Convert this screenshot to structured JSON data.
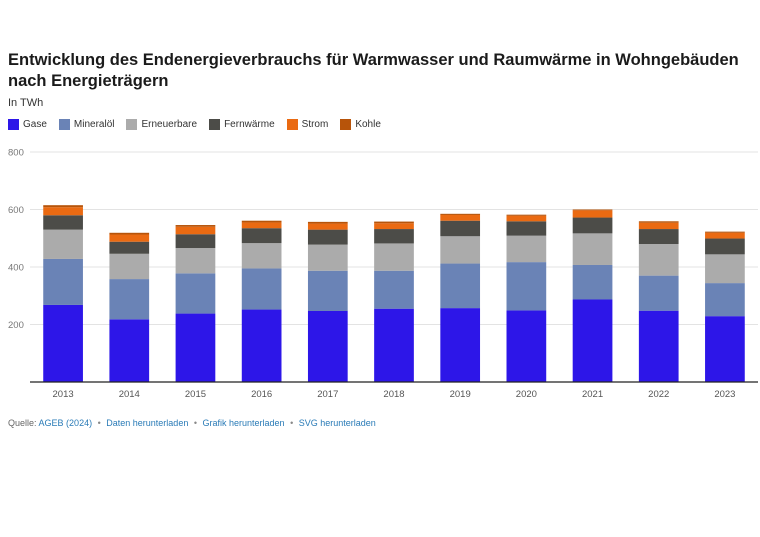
{
  "title": "Entwicklung des Endenergieverbrauchs für Warmwasser und Raumwärme in Wohngebäuden nach Energieträgern",
  "subtitle": "In TWh",
  "source": {
    "label": "Quelle:",
    "ageb": "AGEB (2024)",
    "data_link": "Daten herunterladen",
    "chart_link": "Grafik herunterladen",
    "svg_link": "SVG herunterladen",
    "separator": "•"
  },
  "chart_data": {
    "type": "bar",
    "stacked": true,
    "categories": [
      "2013",
      "2014",
      "2015",
      "2016",
      "2017",
      "2018",
      "2019",
      "2020",
      "2021",
      "2022",
      "2023"
    ],
    "ylim": [
      0,
      800
    ],
    "yticks": [
      0,
      200,
      400,
      600,
      800
    ],
    "ytick_labels": [
      "",
      "200",
      "400",
      "600",
      "800"
    ],
    "grid": true,
    "legend_position": "top-left",
    "series": [
      {
        "name": "Gase",
        "color": "#2d16e8",
        "values": [
          268,
          218,
          238,
          252,
          247,
          255,
          257,
          249,
          287,
          248,
          229
        ]
      },
      {
        "name": "Mineralöl",
        "color": "#6a83b6",
        "values": [
          160,
          140,
          140,
          143,
          140,
          132,
          155,
          168,
          120,
          122,
          115
        ]
      },
      {
        "name": "Erneuerbare",
        "color": "#ababab",
        "values": [
          102,
          88,
          88,
          88,
          91,
          95,
          95,
          92,
          110,
          110,
          100
        ]
      },
      {
        "name": "Fernwärme",
        "color": "#4c4c48",
        "values": [
          50,
          42,
          48,
          52,
          52,
          50,
          54,
          50,
          55,
          52,
          55
        ]
      },
      {
        "name": "Strom",
        "color": "#ea6a12",
        "values": [
          28,
          25,
          26,
          20,
          21,
          20,
          20,
          19,
          25,
          22,
          20
        ]
      },
      {
        "name": "Kohle",
        "color": "#b7540a",
        "values": [
          7,
          6,
          6,
          6,
          6,
          6,
          4,
          4,
          3,
          5,
          4
        ]
      }
    ]
  }
}
